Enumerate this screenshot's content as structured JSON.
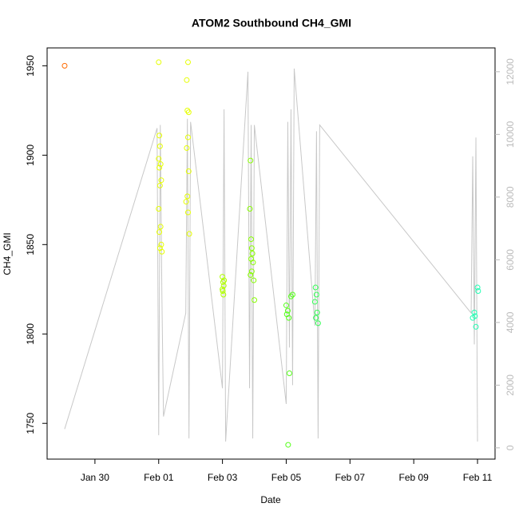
{
  "chart_data": {
    "type": "scatter",
    "title": "ATOM2 Southbound CH4_GMI",
    "x_label": "Date",
    "y_label": "CH4_GMI",
    "xlim": [
      28.5,
      42.55
    ],
    "xticks": [
      {
        "value": 30,
        "label": "Jan 30"
      },
      {
        "value": 32,
        "label": "Feb 01"
      },
      {
        "value": 34,
        "label": "Feb 03"
      },
      {
        "value": 36,
        "label": "Feb 05"
      },
      {
        "value": 38,
        "label": "Feb 07"
      },
      {
        "value": 40,
        "label": "Feb 09"
      },
      {
        "value": 42,
        "label": "Feb 11"
      }
    ],
    "ylim": [
      1730,
      1960
    ],
    "yticks": [
      1750,
      1800,
      1850,
      1900,
      1950
    ],
    "y2lim": [
      -360,
      12760
    ],
    "y2ticks": [
      0,
      2000,
      4000,
      6000,
      8000,
      10000,
      12000
    ],
    "y2_tick_color": "#bbbbbb",
    "series": [
      {
        "kind": "line",
        "axis": "y2",
        "color": "#c8c8c8",
        "x": [
          29.05,
          31.95,
          32.0,
          32.05,
          32.1,
          32.15,
          32.85,
          32.9,
          32.95,
          33.0,
          34.0,
          34.05,
          34.1,
          34.8,
          34.85,
          34.9,
          34.95,
          35.0,
          36.0,
          36.05,
          36.1,
          36.15,
          36.2,
          36.25,
          36.9,
          36.95,
          37.0,
          37.05,
          41.8,
          41.85,
          41.9,
          41.95,
          42.0
        ],
        "values": [
          600,
          10200,
          400,
          10300,
          4900,
          1000,
          4300,
          10500,
          300,
          10400,
          1900,
          10800,
          200,
          12000,
          1900,
          10300,
          300,
          10300,
          1400,
          10400,
          3200,
          10800,
          2000,
          12100,
          3900,
          10100,
          300,
          10300,
          4300,
          9300,
          3300,
          9900,
          200
        ]
      },
      {
        "kind": "points",
        "color": "#ff6a00",
        "x": [
          29.05
        ],
        "values": [
          1950
        ]
      },
      {
        "kind": "points",
        "color": "#e6ff00",
        "x": [
          32.0,
          32.02,
          32.04,
          32.0,
          32.06,
          32.02,
          32.08,
          32.04,
          32.0,
          32.06,
          32.02,
          32.08,
          32.04,
          32.1,
          32.92,
          32.88,
          32.9,
          32.94,
          32.92,
          32.88,
          32.94,
          32.9,
          32.86,
          32.92,
          32.96
        ],
        "values": [
          1952,
          1911,
          1905,
          1898,
          1895,
          1893,
          1886,
          1883,
          1870,
          1860,
          1857,
          1850,
          1848,
          1846,
          1952,
          1942,
          1925,
          1924,
          1910,
          1904,
          1891,
          1877,
          1874,
          1868,
          1856
        ]
      },
      {
        "kind": "points",
        "color": "#b0ff00",
        "x": [
          34.0,
          34.02,
          34.04,
          34.0,
          34.03,
          34.05,
          34.01
        ],
        "values": [
          1832,
          1829,
          1827,
          1825,
          1822,
          1830,
          1824
        ]
      },
      {
        "kind": "points",
        "color": "#88ff00",
        "x": [
          34.88,
          34.86,
          34.9,
          34.92,
          34.94,
          34.9,
          34.96,
          34.92,
          34.88,
          34.98,
          35.0
        ],
        "values": [
          1897,
          1870,
          1853,
          1848,
          1845,
          1842,
          1840,
          1835,
          1833,
          1830,
          1819
        ]
      },
      {
        "kind": "points",
        "color": "#55ff1a",
        "x": [
          36.0,
          36.05,
          36.02,
          36.08,
          36.1,
          36.06,
          36.15,
          36.2
        ],
        "values": [
          1816,
          1813,
          1811,
          1809,
          1778,
          1738,
          1821,
          1822
        ]
      },
      {
        "kind": "points",
        "color": "#33ff55",
        "x": [
          36.92,
          36.95,
          36.9,
          36.97,
          36.93,
          37.0
        ],
        "values": [
          1826,
          1822,
          1818,
          1812,
          1809,
          1806
        ]
      },
      {
        "kind": "points",
        "color": "#22ffb4",
        "x": [
          42.0,
          42.02,
          41.9,
          41.85,
          41.95,
          41.92
        ],
        "values": [
          1826,
          1824,
          1812,
          1809,
          1804,
          1810
        ]
      }
    ]
  }
}
